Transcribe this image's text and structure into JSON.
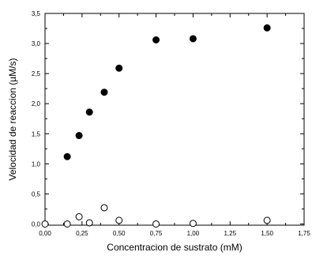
{
  "chart_data": {
    "type": "scatter",
    "title": "",
    "xlabel": "Concentracion de sustrato (mM)",
    "ylabel": "Velocidad de reaccion (µM/s)",
    "xlim": [
      0,
      1.75
    ],
    "ylim": [
      -0.02,
      3.5
    ],
    "x_ticks": [
      "0,00",
      "0,25",
      "0,50",
      "0,75",
      "1,00",
      "1,25",
      "1,50",
      "1,75"
    ],
    "x_tick_values": [
      0,
      0.25,
      0.5,
      0.75,
      1.0,
      1.25,
      1.5,
      1.75
    ],
    "y_ticks": [
      "0,0",
      "0,5",
      "1,0",
      "1,5",
      "2,0",
      "2,5",
      "3,0",
      "3,5"
    ],
    "y_tick_values": [
      0,
      0.5,
      1.0,
      1.5,
      2.0,
      2.5,
      3.0,
      3.5
    ],
    "grid": false,
    "legend": "none",
    "series": [
      {
        "marker": "filled-circle",
        "color": "#000000",
        "x": [
          0.15,
          0.23,
          0.3,
          0.4,
          0.5,
          0.75,
          1.0,
          1.5
        ],
        "y": [
          1.12,
          1.47,
          1.86,
          2.19,
          2.59,
          3.06,
          3.08,
          3.26
        ]
      },
      {
        "marker": "open-circle",
        "color": "#000000",
        "x": [
          0.0,
          0.15,
          0.23,
          0.3,
          0.4,
          0.5,
          0.75,
          1.0,
          1.5
        ],
        "y": [
          0.0,
          0.0,
          0.12,
          0.02,
          0.27,
          0.06,
          0.0,
          0.01,
          0.06
        ]
      }
    ]
  }
}
